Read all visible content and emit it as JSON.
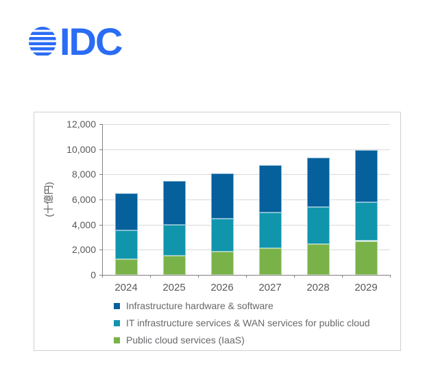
{
  "logo": {
    "text": "IDC",
    "color": "#2a6cf4",
    "icon": "striped-globe-icon"
  },
  "chart_panel": {
    "background": "#ffffff",
    "border_color": "#cfcfcf"
  },
  "chart_data": {
    "type": "bar",
    "stacked": true,
    "title": "",
    "ylabel": "(十億円)",
    "categories": [
      "2024",
      "2025",
      "2026",
      "2027",
      "2028",
      "2029"
    ],
    "series": [
      {
        "name": "Infrastructure hardware & software",
        "color": "#05609c",
        "values": [
          2950,
          3480,
          3620,
          3800,
          3950,
          4150
        ]
      },
      {
        "name": "IT infrastructure services & WAN services for public cloud",
        "color": "#1195ad",
        "values": [
          2300,
          2450,
          2630,
          2800,
          2950,
          3100
        ]
      },
      {
        "name": "Public cloud services (IaaS)",
        "color": "#7ab24a",
        "values": [
          1250,
          1550,
          1850,
          2150,
          2450,
          2700
        ]
      }
    ],
    "stack_totals": [
      6500,
      7480,
      8100,
      8750,
      9350,
      9950
    ],
    "ylim": [
      0,
      12000
    ],
    "ytick_step": 2000,
    "ytick_labels": [
      "0",
      "2,000",
      "4,000",
      "6,000",
      "8,000",
      "10,000",
      "12,000"
    ],
    "grid": true,
    "legend_position": "bottom-left",
    "axis_text_color": "#595959",
    "legend_text_color": "#66676a",
    "gridline_color": "#d9d9d9",
    "axis_line_color": "#7f7f7f"
  }
}
